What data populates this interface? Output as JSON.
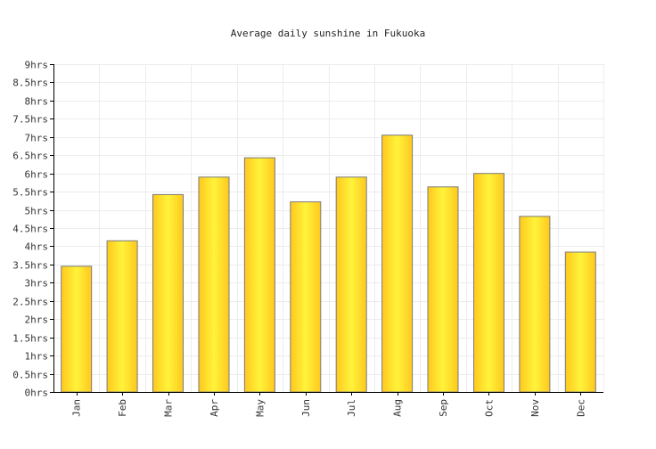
{
  "chart_data": {
    "type": "bar",
    "title": "Average daily sunshine in Fukuoka",
    "xlabel": "",
    "ylabel": "",
    "categories": [
      "Jan",
      "Feb",
      "Mar",
      "Apr",
      "May",
      "Jun",
      "Jul",
      "Aug",
      "Sep",
      "Oct",
      "Nov",
      "Dec"
    ],
    "values": [
      3.45,
      4.15,
      5.42,
      5.9,
      6.43,
      5.22,
      5.9,
      7.05,
      5.63,
      6.0,
      4.82,
      3.84
    ],
    "ylim": [
      0,
      9
    ],
    "yticks": [
      "0hrs",
      "0.5hrs",
      "1hrs",
      "1.5hrs",
      "2hrs",
      "2.5hrs",
      "3hrs",
      "3.5hrs",
      "4hrs",
      "4.5hrs",
      "5hrs",
      "5.5hrs",
      "6hrs",
      "6.5hrs",
      "7hrs",
      "7.5hrs",
      "8hrs",
      "8.5hrs",
      "9hrs"
    ],
    "ytick_values": [
      0,
      0.5,
      1,
      1.5,
      2,
      2.5,
      3,
      3.5,
      4,
      4.5,
      5,
      5.5,
      6,
      6.5,
      7,
      7.5,
      8,
      8.5,
      9
    ],
    "grid": true,
    "legend": "none",
    "colors": {
      "bar_light": "#fff33a",
      "bar_dark": "#ffc81e",
      "bar_stroke": "#7a7a7a",
      "grid": "#ececec",
      "axis": "#000000"
    }
  }
}
